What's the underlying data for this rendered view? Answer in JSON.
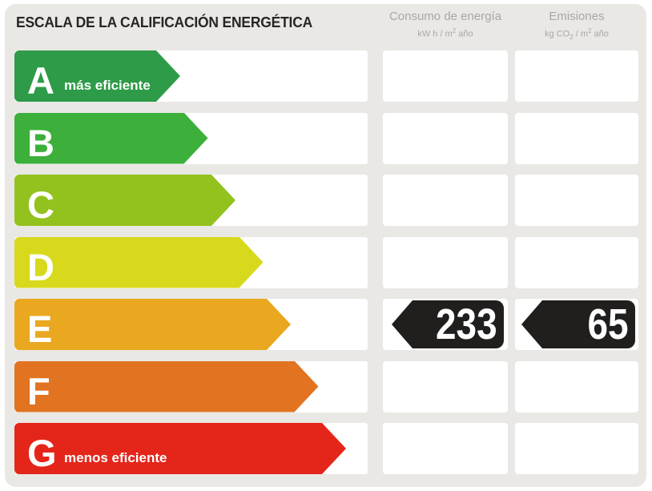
{
  "title": "ESCALA DE LA CALIFICACIÓN ENERGÉTICA",
  "columns": {
    "consumption": {
      "label": "Consumo de energía",
      "unit": [
        "kW h / m",
        "2",
        " año"
      ]
    },
    "emissions": {
      "label": "Emisiones",
      "unit": [
        "kg CO",
        "2",
        " / m",
        "2",
        " año"
      ]
    }
  },
  "scale": {
    "rows": [
      {
        "letter": "A",
        "note": "más eficiente",
        "color": "#2e9b48"
      },
      {
        "letter": "B",
        "note": "",
        "color": "#3cb03b"
      },
      {
        "letter": "C",
        "note": "",
        "color": "#93c21e"
      },
      {
        "letter": "D",
        "note": "",
        "color": "#d8d91c"
      },
      {
        "letter": "E",
        "note": "",
        "color": "#e9a820"
      },
      {
        "letter": "F",
        "note": "",
        "color": "#e27320"
      },
      {
        "letter": "G",
        "note": "menos eficiente",
        "color": "#e4261a"
      }
    ]
  },
  "values": {
    "rating": "E",
    "consumption": "233",
    "emissions": "65",
    "pointer_color": "#211e1e"
  },
  "chart_data": {
    "type": "bar",
    "title": "ESCALA DE LA CALIFICACIÓN ENERGÉTICA",
    "categories": [
      "A",
      "B",
      "C",
      "D",
      "E",
      "F",
      "G"
    ],
    "series": [
      {
        "name": "relative-arrow-length",
        "values": [
          1,
          2,
          3,
          4,
          5,
          6,
          7
        ]
      }
    ],
    "colors": [
      "#2e9b48",
      "#3cb03b",
      "#93c21e",
      "#d8d91c",
      "#e9a820",
      "#e27320",
      "#e4261a"
    ],
    "annotations": [
      {
        "row": "E",
        "column": "Consumo de energía (kW h / m2 año)",
        "value": 233
      },
      {
        "row": "E",
        "column": "Emisiones (kg CO2 / m2 año)",
        "value": 65
      }
    ],
    "legend": "off",
    "grid": "off"
  }
}
